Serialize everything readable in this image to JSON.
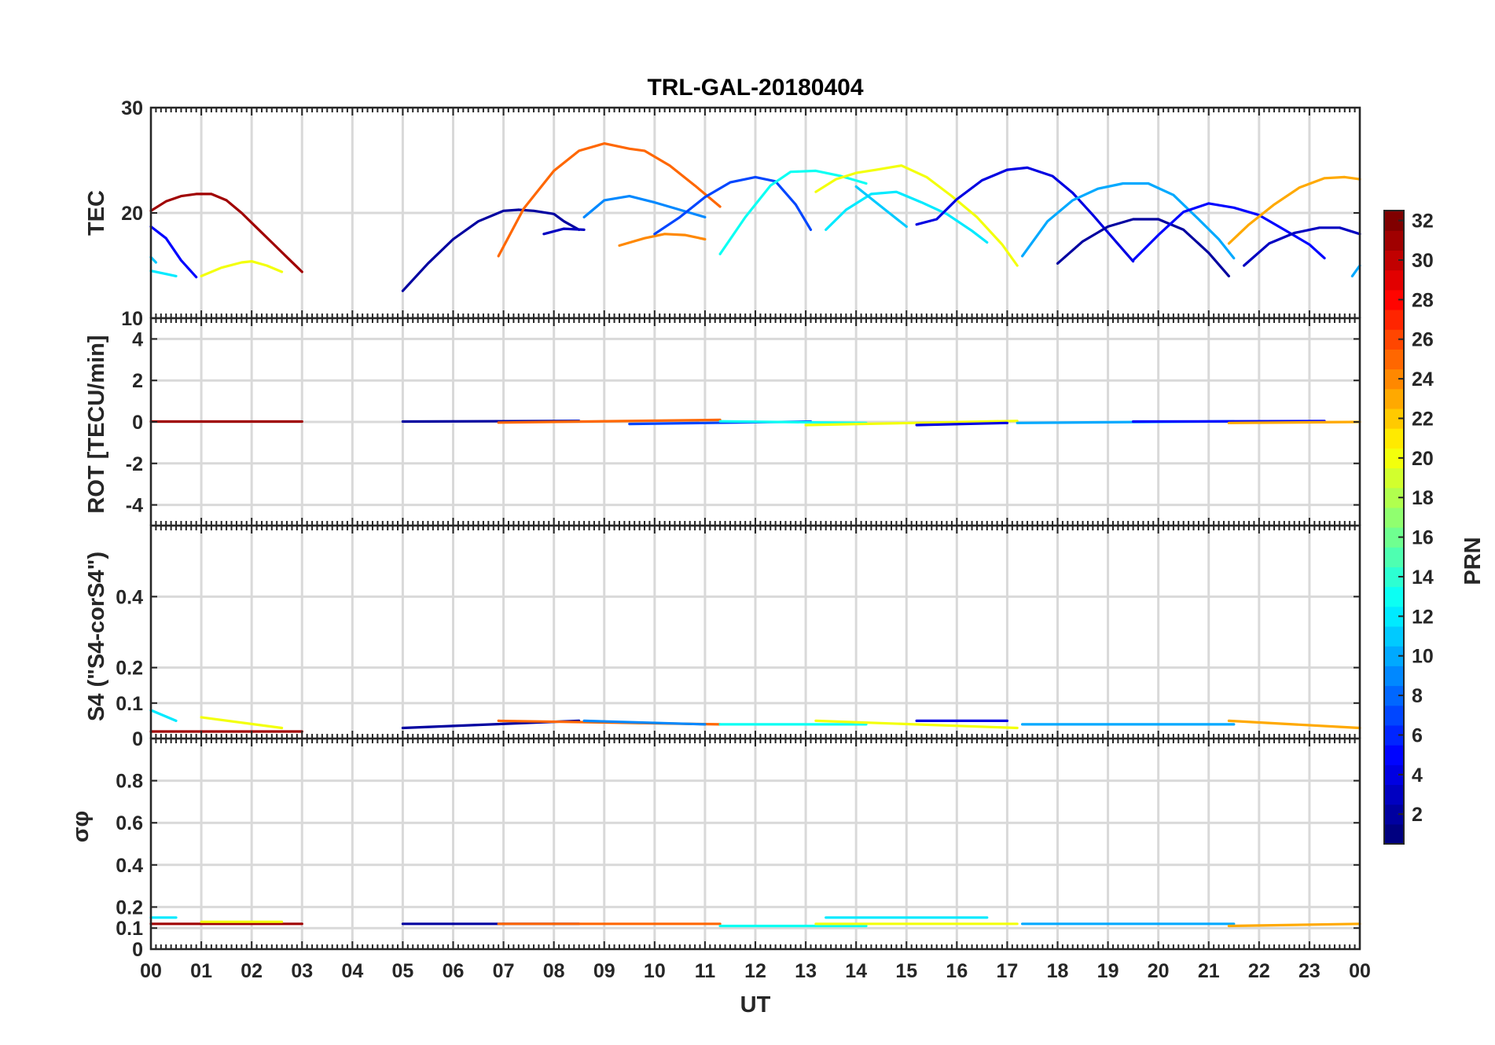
{
  "chart_data": {
    "type": "line",
    "title": "TRL-GAL-20180404",
    "xlabel": "UT",
    "x_ticks": [
      "00",
      "01",
      "02",
      "03",
      "04",
      "05",
      "06",
      "07",
      "08",
      "09",
      "10",
      "11",
      "12",
      "13",
      "14",
      "15",
      "16",
      "17",
      "18",
      "19",
      "20",
      "21",
      "22",
      "23",
      "00"
    ],
    "xlim": [
      0,
      24
    ],
    "colorbar": {
      "label": "PRN",
      "range": [
        1,
        32
      ],
      "ticks": [
        "2",
        "4",
        "6",
        "8",
        "10",
        "12",
        "14",
        "16",
        "18",
        "20",
        "22",
        "24",
        "26",
        "28",
        "30",
        "32"
      ]
    },
    "panels": [
      {
        "ylabel": "TEC",
        "ylim": [
          10,
          30
        ],
        "y_ticks": [
          "10",
          "20",
          "30"
        ],
        "series": [
          {
            "prn": 31,
            "x": [
              0,
              0.3,
              0.6,
              0.9,
              1.2,
              1.5,
              1.8,
              2.1,
              2.4,
              2.7,
              3.0
            ],
            "y": [
              20.2,
              21.1,
              21.6,
              21.8,
              21.8,
              21.2,
              20.0,
              18.6,
              17.2,
              15.8,
              14.4
            ]
          },
          {
            "prn": 5,
            "x": [
              0,
              0.3,
              0.6,
              0.9
            ],
            "y": [
              18.7,
              17.6,
              15.5,
              13.9
            ]
          },
          {
            "prn": 12,
            "x": [
              0,
              0.3,
              0.5
            ],
            "y": [
              14.5,
              14.2,
              14.0
            ]
          },
          {
            "prn": 11,
            "x": [
              0,
              0.1
            ],
            "y": [
              15.8,
              15.3
            ]
          },
          {
            "prn": 20,
            "x": [
              1.0,
              1.4,
              1.8,
              2.0,
              2.3,
              2.6
            ],
            "y": [
              14.0,
              14.8,
              15.3,
              15.4,
              15.0,
              14.4
            ]
          },
          {
            "prn": 2,
            "x": [
              5.0,
              5.5,
              6.0,
              6.5,
              7.0,
              7.3
            ],
            "y": [
              12.6,
              15.2,
              17.5,
              19.2,
              20.2,
              20.3
            ]
          },
          {
            "prn": 2,
            "x": [
              7.3,
              7.6,
              8.0,
              8.2,
              8.5
            ],
            "y": [
              20.3,
              20.2,
              19.9,
              19.2,
              18.4
            ]
          },
          {
            "prn": 3,
            "x": [
              7.8,
              8.2,
              8.6
            ],
            "y": [
              18.0,
              18.5,
              18.4
            ]
          },
          {
            "prn": 25,
            "x": [
              6.9,
              7.4,
              8.0,
              8.5,
              9.0,
              9.5,
              9.8,
              10.3,
              10.8,
              11.3
            ],
            "y": [
              15.9,
              20.4,
              24.0,
              25.9,
              26.6,
              26.1,
              25.9,
              24.5,
              22.6,
              20.6
            ]
          },
          {
            "prn": 9,
            "x": [
              8.6,
              9.0,
              9.5,
              10.0,
              10.5,
              11.0
            ],
            "y": [
              19.6,
              21.2,
              21.6,
              21.0,
              20.3,
              19.6
            ]
          },
          {
            "prn": 24,
            "x": [
              9.3,
              9.8,
              10.2,
              10.6,
              11.0
            ],
            "y": [
              16.9,
              17.6,
              18.0,
              17.9,
              17.5
            ]
          },
          {
            "prn": 7,
            "x": [
              10.0,
              10.5,
              11.0,
              11.5,
              12.0,
              12.4,
              12.8,
              13.1
            ],
            "y": [
              18.0,
              19.6,
              21.5,
              22.9,
              23.4,
              23.0,
              20.8,
              18.4
            ]
          },
          {
            "prn": 13,
            "x": [
              11.3,
              11.8,
              12.3,
              12.7,
              13.2,
              13.7,
              14.2
            ],
            "y": [
              16.1,
              19.6,
              22.6,
              23.9,
              24.0,
              23.5,
              22.8
            ]
          },
          {
            "prn": 12,
            "x": [
              13.4,
              13.8,
              14.3,
              14.8,
              15.3,
              15.8,
              16.3,
              16.6
            ],
            "y": [
              18.4,
              20.3,
              21.8,
              22.0,
              21.0,
              19.9,
              18.3,
              17.2
            ]
          },
          {
            "prn": 20,
            "x": [
              13.2,
              13.6,
              14.0,
              14.4,
              14.9,
              15.4,
              15.9,
              16.4,
              16.9,
              17.2
            ],
            "y": [
              22.0,
              23.2,
              23.8,
              24.1,
              24.5,
              23.4,
              21.6,
              19.6,
              17.0,
              15.0
            ]
          },
          {
            "prn": 11,
            "x": [
              14.0,
              14.5,
              15.0
            ],
            "y": [
              22.5,
              20.6,
              18.7
            ]
          },
          {
            "prn": 4,
            "x": [
              15.2,
              15.6,
              16.0,
              16.5,
              17.0,
              17.4,
              17.9,
              18.3,
              18.7,
              19.1,
              19.5
            ],
            "y": [
              18.9,
              19.4,
              21.3,
              23.1,
              24.1,
              24.3,
              23.5,
              21.9,
              19.8,
              17.6,
              15.4
            ]
          },
          {
            "prn": 10,
            "x": [
              17.3,
              17.8,
              18.3,
              18.8,
              19.3,
              19.8,
              20.3,
              20.8,
              21.2,
              21.5
            ],
            "y": [
              15.9,
              19.2,
              21.2,
              22.3,
              22.8,
              22.8,
              21.7,
              19.4,
              17.5,
              15.7
            ]
          },
          {
            "prn": 2,
            "x": [
              18.0,
              18.5,
              19.0,
              19.5,
              20.0,
              20.5,
              21.0,
              21.4
            ],
            "y": [
              15.2,
              17.3,
              18.7,
              19.4,
              19.4,
              18.4,
              16.2,
              14.0
            ]
          },
          {
            "prn": 5,
            "x": [
              19.5,
              20.0,
              20.5,
              21.0,
              21.5,
              22.0,
              22.5,
              23.0,
              23.3
            ],
            "y": [
              15.5,
              17.9,
              20.1,
              20.9,
              20.5,
              19.8,
              18.4,
              17.0,
              15.7
            ]
          },
          {
            "prn": 3,
            "x": [
              21.7,
              22.2,
              22.7,
              23.2,
              23.6,
              24.0
            ],
            "y": [
              15.0,
              17.1,
              18.1,
              18.6,
              18.6,
              18.0
            ]
          },
          {
            "prn": 23,
            "x": [
              21.4,
              21.8,
              22.3,
              22.8,
              23.3,
              23.7,
              24.0
            ],
            "y": [
              17.1,
              18.9,
              20.8,
              22.4,
              23.3,
              23.4,
              23.2
            ]
          },
          {
            "prn": 10,
            "x": [
              23.85,
              24.0
            ],
            "y": [
              14.0,
              15.0
            ]
          }
        ]
      },
      {
        "ylabel": "ROT [TECU/min]",
        "ylim": [
          -5,
          5
        ],
        "y_ticks": [
          "-4",
          "-2",
          "0",
          "2",
          "4"
        ],
        "series": [
          {
            "prn": 31,
            "x": [
              0,
              3.0
            ],
            "y": [
              0.02,
              0.02
            ]
          },
          {
            "prn": 2,
            "x": [
              5.0,
              8.5
            ],
            "y": [
              0.02,
              0.05
            ]
          },
          {
            "prn": 25,
            "x": [
              6.9,
              11.3
            ],
            "y": [
              -0.03,
              0.1
            ]
          },
          {
            "prn": 7,
            "x": [
              9.5,
              13.1
            ],
            "y": [
              -0.1,
              0.02
            ]
          },
          {
            "prn": 13,
            "x": [
              11.3,
              14.2
            ],
            "y": [
              0.03,
              -0.05
            ]
          },
          {
            "prn": 20,
            "x": [
              13.0,
              17.2
            ],
            "y": [
              -0.15,
              0.05
            ]
          },
          {
            "prn": 4,
            "x": [
              15.2,
              17.0
            ],
            "y": [
              -0.15,
              -0.05
            ]
          },
          {
            "prn": 10,
            "x": [
              17.2,
              21.5
            ],
            "y": [
              -0.05,
              0.03
            ]
          },
          {
            "prn": 5,
            "x": [
              19.5,
              23.3
            ],
            "y": [
              0.02,
              0.04
            ]
          },
          {
            "prn": 23,
            "x": [
              21.4,
              24.0
            ],
            "y": [
              -0.05,
              0.0
            ]
          }
        ]
      },
      {
        "ylabel": "S4 (\"S4-corS4\")",
        "ylim": [
          0,
          0.6
        ],
        "y_ticks": [
          "0",
          "0.1",
          "0.2",
          "0.4"
        ],
        "series": [
          {
            "prn": 31,
            "x": [
              0,
              3.0
            ],
            "y": [
              0.02,
              0.02
            ]
          },
          {
            "prn": 20,
            "x": [
              1.0,
              2.6
            ],
            "y": [
              0.06,
              0.03
            ]
          },
          {
            "prn": 12,
            "x": [
              0,
              0.5
            ],
            "y": [
              0.08,
              0.05
            ]
          },
          {
            "prn": 2,
            "x": [
              5.0,
              8.5
            ],
            "y": [
              0.03,
              0.05
            ]
          },
          {
            "prn": 25,
            "x": [
              6.9,
              11.3
            ],
            "y": [
              0.05,
              0.04
            ]
          },
          {
            "prn": 9,
            "x": [
              8.6,
              11.0
            ],
            "y": [
              0.05,
              0.04
            ]
          },
          {
            "prn": 13,
            "x": [
              11.3,
              14.2
            ],
            "y": [
              0.04,
              0.04
            ]
          },
          {
            "prn": 20,
            "x": [
              13.2,
              17.2
            ],
            "y": [
              0.05,
              0.03
            ]
          },
          {
            "prn": 4,
            "x": [
              15.2,
              17.0
            ],
            "y": [
              0.05,
              0.05
            ]
          },
          {
            "prn": 10,
            "x": [
              17.3,
              21.5
            ],
            "y": [
              0.04,
              0.04
            ]
          },
          {
            "prn": 23,
            "x": [
              21.4,
              24.0
            ],
            "y": [
              0.05,
              0.03
            ]
          }
        ]
      },
      {
        "ylabel": "σφ",
        "ylim": [
          0,
          1
        ],
        "y_ticks": [
          "0",
          "0.1",
          "0.2",
          "0.4",
          "0.6",
          "0.8"
        ],
        "series": [
          {
            "prn": 31,
            "x": [
              0,
              3.0
            ],
            "y": [
              0.12,
              0.12
            ]
          },
          {
            "prn": 20,
            "x": [
              1.0,
              2.6
            ],
            "y": [
              0.13,
              0.13
            ]
          },
          {
            "prn": 12,
            "x": [
              0,
              0.5
            ],
            "y": [
              0.15,
              0.15
            ]
          },
          {
            "prn": 2,
            "x": [
              5.0,
              8.5
            ],
            "y": [
              0.12,
              0.12
            ]
          },
          {
            "prn": 25,
            "x": [
              6.9,
              11.3
            ],
            "y": [
              0.12,
              0.12
            ]
          },
          {
            "prn": 13,
            "x": [
              11.3,
              14.2
            ],
            "y": [
              0.11,
              0.11
            ]
          },
          {
            "prn": 12,
            "x": [
              13.4,
              16.6
            ],
            "y": [
              0.15,
              0.15
            ]
          },
          {
            "prn": 20,
            "x": [
              13.2,
              17.2
            ],
            "y": [
              0.12,
              0.12
            ]
          },
          {
            "prn": 10,
            "x": [
              17.3,
              21.5
            ],
            "y": [
              0.12,
              0.12
            ]
          },
          {
            "prn": 23,
            "x": [
              21.4,
              24.0
            ],
            "y": [
              0.11,
              0.12
            ]
          }
        ]
      }
    ]
  }
}
